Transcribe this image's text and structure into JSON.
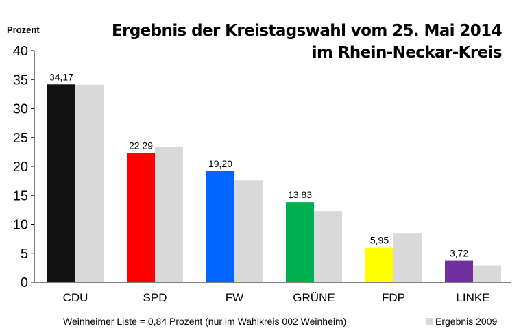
{
  "chart_data": {
    "type": "bar",
    "title": "Ergebnis der Kreistagswahl vom 25. Mai 2014",
    "subtitle": "im Rhein-Neckar-Kreis",
    "ylabel": "Prozent",
    "xlabel": "",
    "ylim": [
      0,
      40
    ],
    "yticks": [
      0,
      5,
      10,
      15,
      20,
      25,
      30,
      35,
      40
    ],
    "grid": false,
    "legend_position": "bottom-right",
    "categories": [
      "CDU",
      "SPD",
      "FW",
      "GRÜNE",
      "FDP",
      "LINKE"
    ],
    "series": [
      {
        "values": [
          34.17,
          22.29,
          19.2,
          13.83,
          5.95,
          3.72
        ],
        "labels": [
          "34,17",
          "22,29",
          "19,20",
          "13,83",
          "5,95",
          "3,72"
        ],
        "colors": [
          "#111111",
          "#ff0000",
          "#0066ff",
          "#00b050",
          "#ffff00",
          "#7030a0"
        ]
      },
      {
        "name": "Ergebnis 2009",
        "values": [
          34.1,
          23.4,
          17.6,
          12.3,
          8.5,
          2.9
        ],
        "color": "#d9d9d9"
      }
    ],
    "footnote": "Weinheimer Liste = 0,84 Prozent  (nur  im Wahlkreis  002 Weinheim)"
  }
}
